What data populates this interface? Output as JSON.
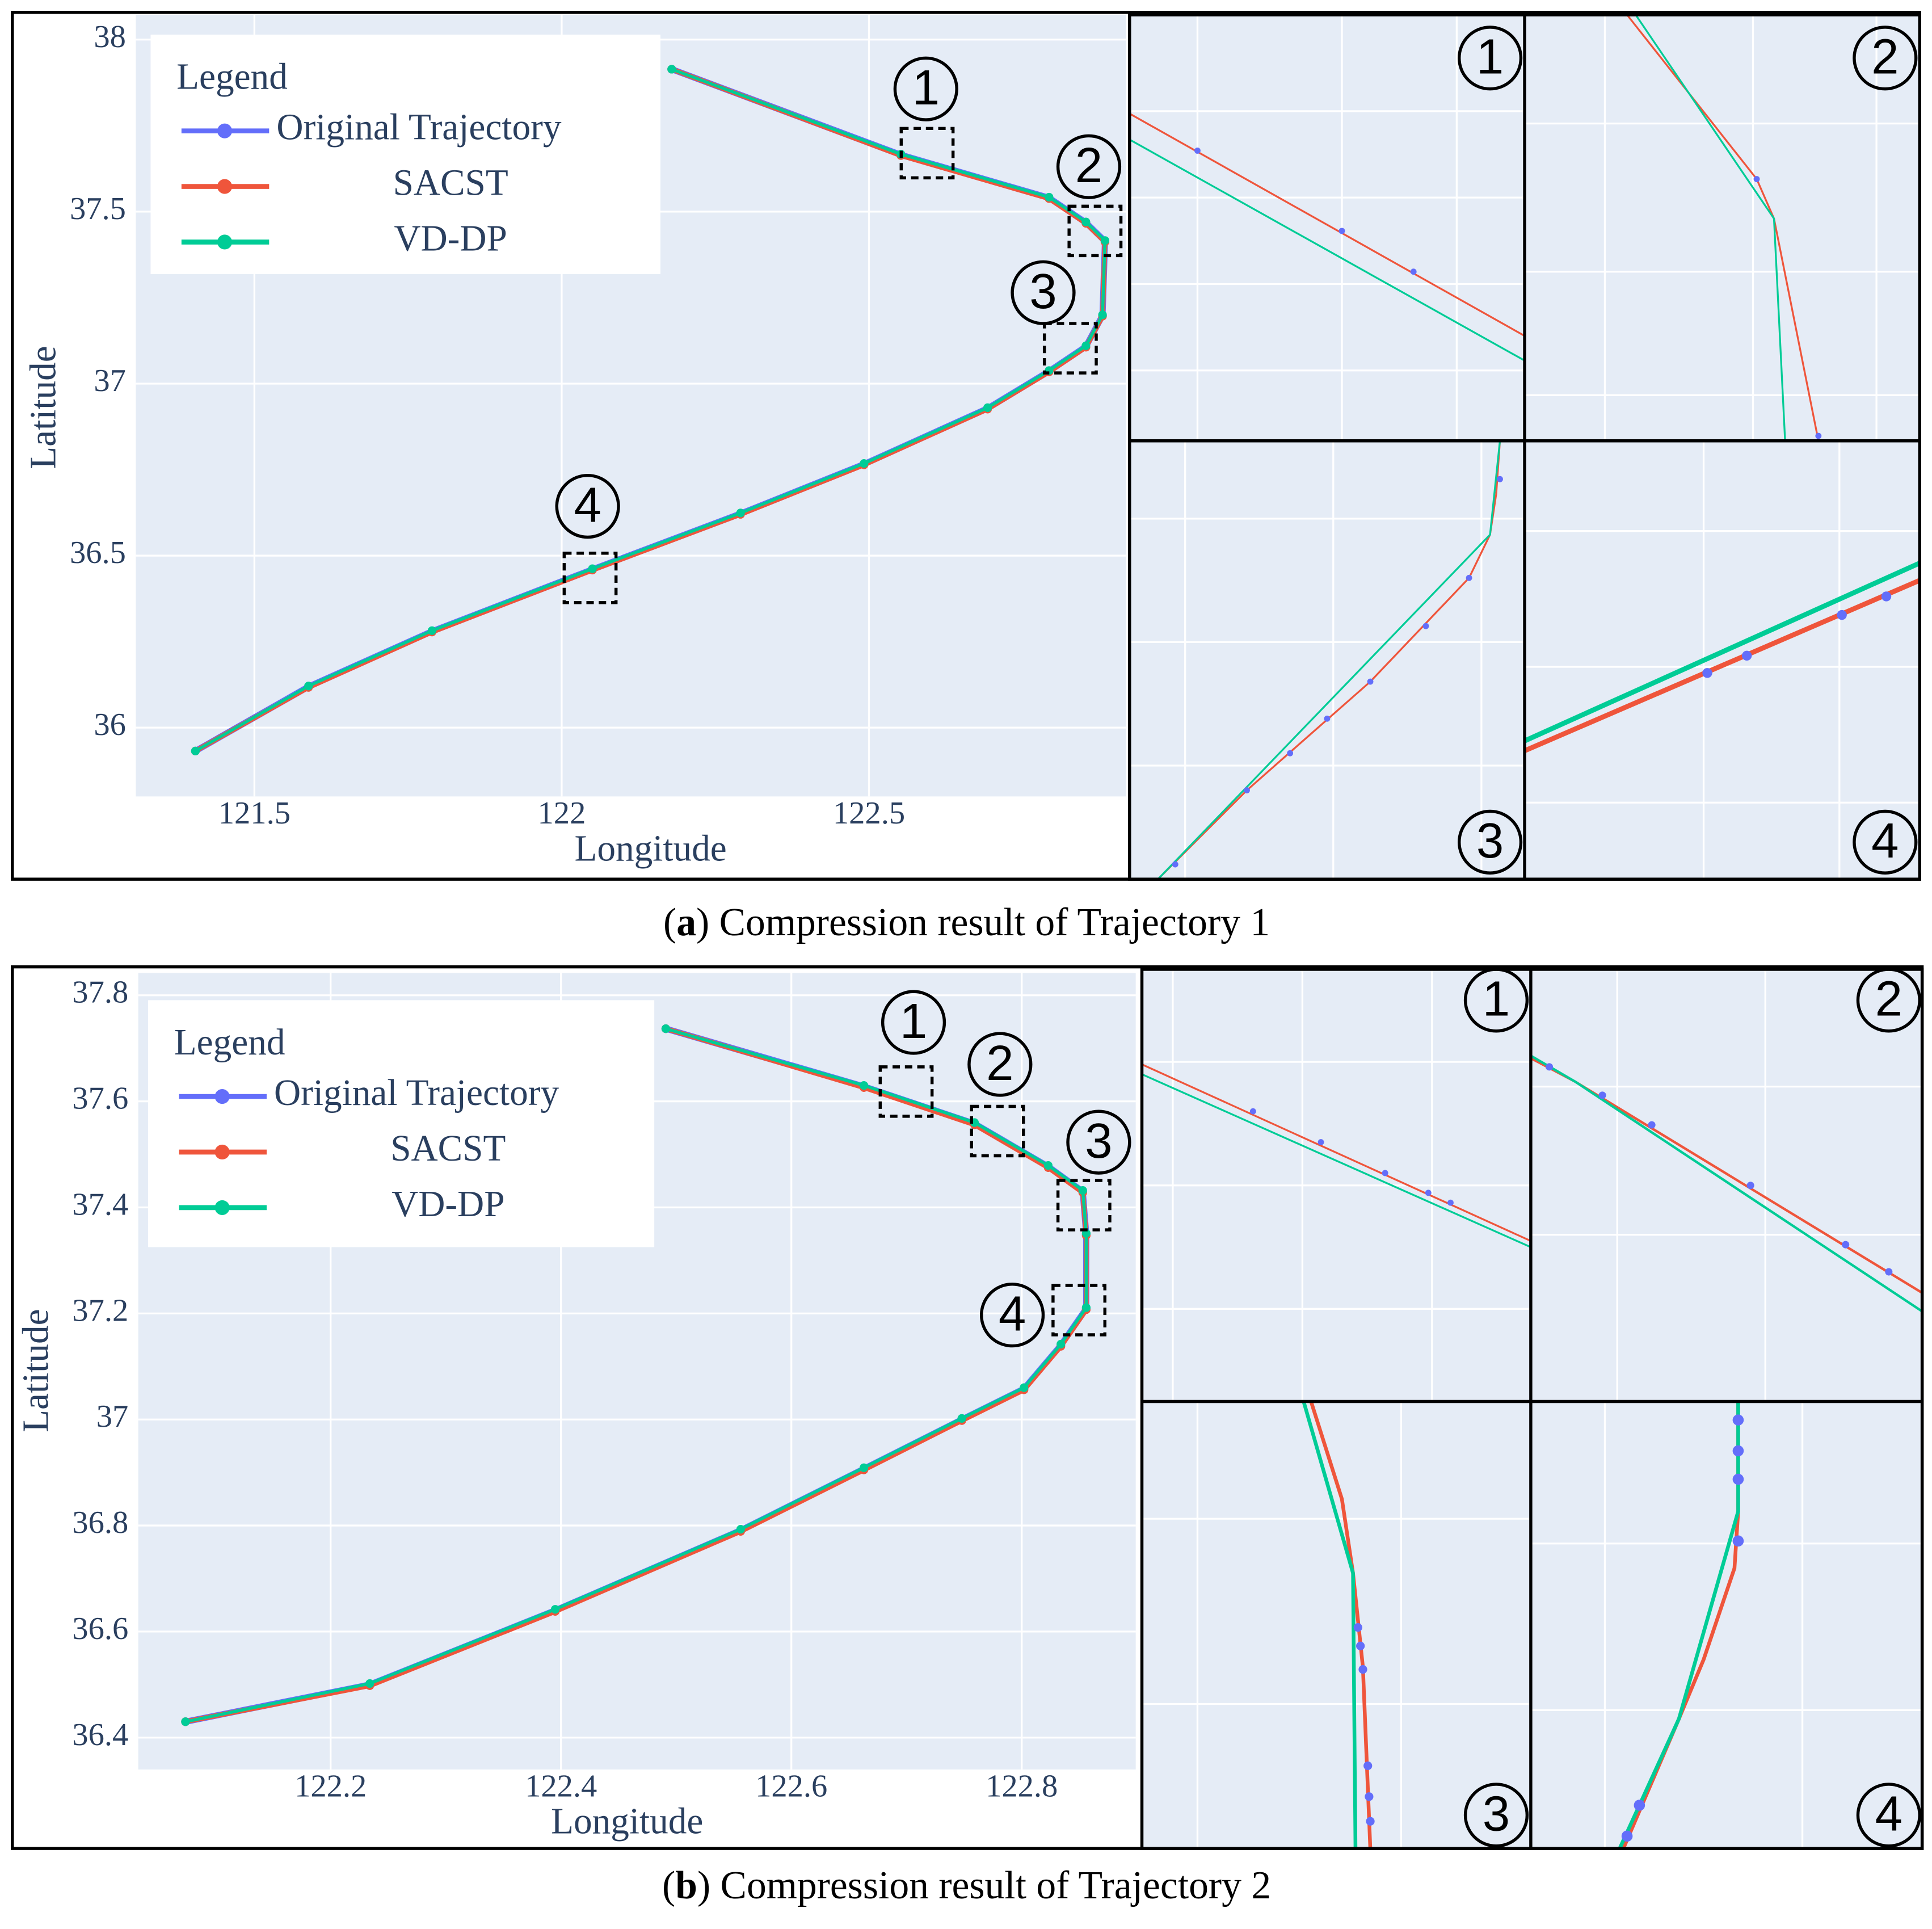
{
  "chart_data": [
    {
      "type": "line",
      "x_label": "Longitude",
      "y_label": "Latitude",
      "legend_title": "Legend",
      "legend": "upper-left",
      "grid": true,
      "caption_parts": [
        "(",
        "a",
        ") Compression result of Trajectory 1"
      ],
      "annotations": [
        "1",
        "2",
        "3",
        "4"
      ],
      "xlim": [
        121.307,
        122.918
      ],
      "xticks": [
        121.5,
        122,
        122.5
      ],
      "ylim": [
        35.8,
        38.072
      ],
      "yticks": [
        36,
        36.5,
        37,
        37.5,
        38
      ],
      "x": [
        122.179,
        122.552,
        122.793,
        122.853,
        122.884,
        122.88,
        122.853,
        122.793,
        122.693,
        122.492,
        122.291,
        122.05,
        121.789,
        121.588,
        121.404
      ],
      "series": [
        {
          "name": "Original Trajectory",
          "color": "#636efa",
          "values": [
            37.914,
            37.665,
            37.54,
            37.468,
            37.414,
            37.198,
            37.108,
            37.036,
            36.928,
            36.766,
            36.622,
            36.46,
            36.28,
            36.119,
            35.932
          ]
        },
        {
          "name": "SACST",
          "color": "#ef553b",
          "values": [
            37.914,
            37.663,
            37.538,
            37.466,
            37.412,
            37.196,
            37.106,
            37.034,
            36.926,
            36.764,
            36.62,
            36.458,
            36.278,
            36.117,
            35.932
          ]
        },
        {
          "name": "VD-DP",
          "color": "#00cc96",
          "values": [
            37.914,
            37.667,
            37.542,
            37.47,
            37.416,
            37.2,
            37.11,
            37.038,
            36.93,
            36.768,
            36.624,
            36.462,
            36.282,
            36.121,
            35.932
          ]
        }
      ]
    },
    {
      "type": "line",
      "x_label": "Longitude",
      "y_label": "Latitude",
      "legend_title": "Legend",
      "legend": "upper-left",
      "grid": true,
      "caption_parts": [
        "(",
        "b",
        ") Compression result of Trajectory 2"
      ],
      "annotations": [
        "1",
        "2",
        "3",
        "4"
      ],
      "xlim": [
        122.033,
        122.899
      ],
      "xticks": [
        122.2,
        122.4,
        122.6,
        122.8
      ],
      "ylim": [
        36.34,
        37.842
      ],
      "yticks": [
        36.4,
        36.6,
        36.8,
        37,
        37.2,
        37.4,
        37.6,
        37.8
      ],
      "x": [
        122.491,
        122.663,
        122.759,
        122.823,
        122.853,
        122.856,
        122.856,
        122.834,
        122.802,
        122.748,
        122.663,
        122.556,
        122.395,
        122.234,
        122.074
      ],
      "series": [
        {
          "name": "Original Trajectory",
          "color": "#636efa",
          "values": [
            37.737,
            37.628,
            37.558,
            37.477,
            37.43,
            37.349,
            37.209,
            37.14,
            37.058,
            37.0,
            36.907,
            36.791,
            36.64,
            36.5,
            36.43
          ]
        },
        {
          "name": "SACST",
          "color": "#ef553b",
          "values": [
            37.737,
            37.626,
            37.556,
            37.475,
            37.428,
            37.347,
            37.207,
            37.138,
            37.056,
            36.998,
            36.905,
            36.789,
            36.638,
            36.498,
            36.43
          ]
        },
        {
          "name": "VD-DP",
          "color": "#00cc96",
          "values": [
            37.737,
            37.63,
            37.56,
            37.479,
            37.432,
            37.351,
            37.211,
            37.142,
            37.06,
            37.002,
            36.909,
            36.793,
            36.642,
            36.502,
            36.43
          ]
        }
      ]
    }
  ]
}
